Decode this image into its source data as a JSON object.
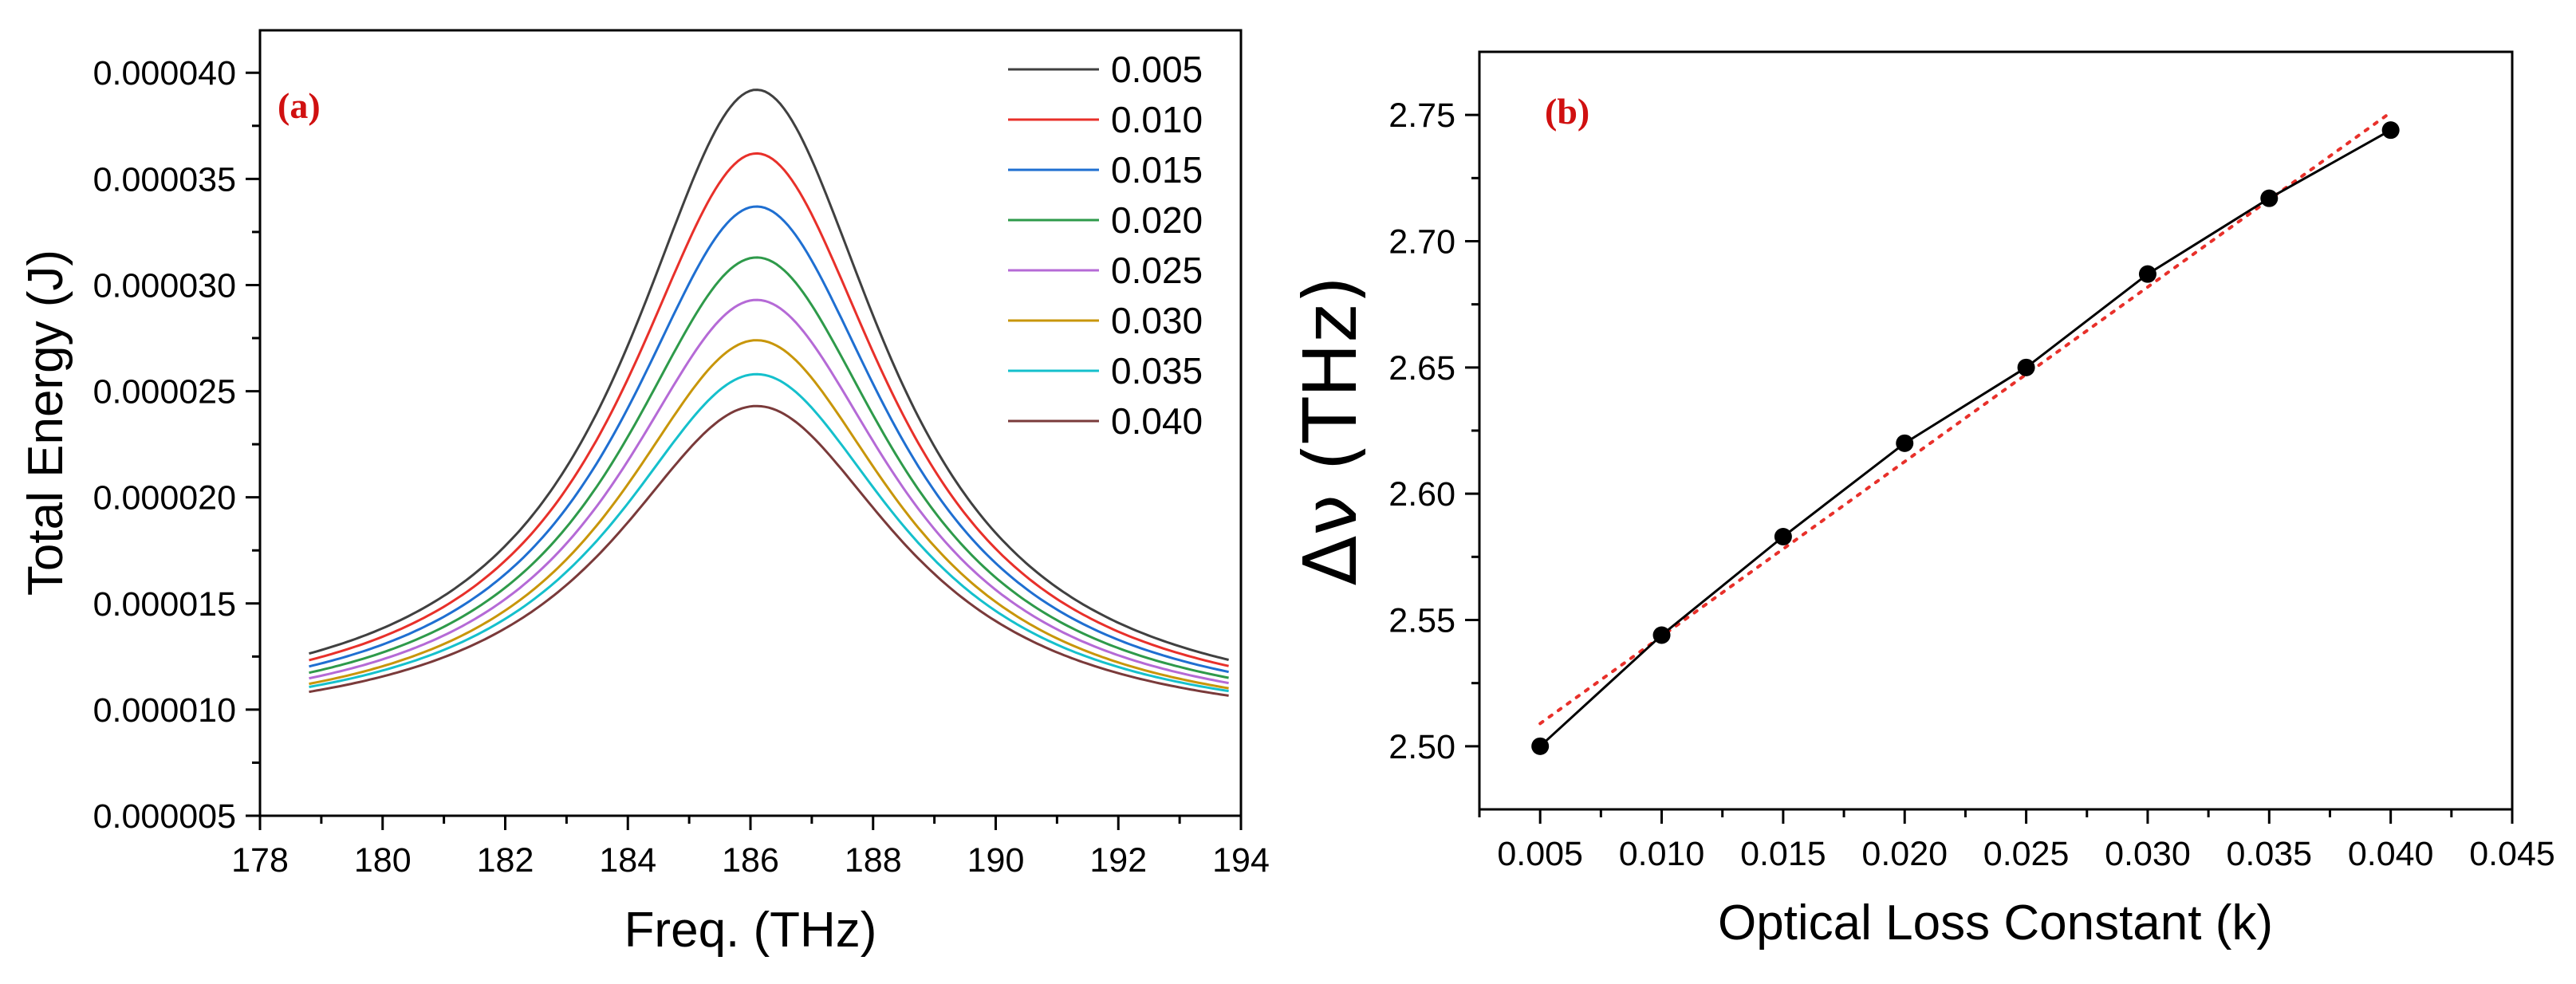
{
  "chart_data": [
    {
      "type": "line",
      "panel_label": "(a)",
      "xlabel": "Freq. (THz)",
      "ylabel": "Total Energy (J)",
      "xlim": [
        178,
        194
      ],
      "ylim": [
        5e-06,
        4.2e-05
      ],
      "x_ticks": [
        "178",
        "180",
        "182",
        "184",
        "186",
        "188",
        "190",
        "192",
        "194"
      ],
      "y_ticks": [
        "0.000005",
        "0.000010",
        "0.000015",
        "0.000020",
        "0.000025",
        "0.000030",
        "0.000035",
        "0.000040"
      ],
      "legend": "top-right",
      "center_freq": 186.1,
      "x_range": [
        178.8,
        193.8
      ],
      "series": [
        {
          "name": "0.005",
          "color": "#404040",
          "peak": 3.92e-05,
          "baseline": 9.4e-06,
          "width": 2.55
        },
        {
          "name": "0.010",
          "color": "#e8302a",
          "peak": 3.62e-05,
          "baseline": 9.3e-06,
          "width": 2.6
        },
        {
          "name": "0.015",
          "color": "#1f6fd1",
          "peak": 3.37e-05,
          "baseline": 9.2e-06,
          "width": 2.64
        },
        {
          "name": "0.020",
          "color": "#2e9a4a",
          "peak": 3.13e-05,
          "baseline": 9.1e-06,
          "width": 2.68
        },
        {
          "name": "0.025",
          "color": "#b56ad6",
          "peak": 2.93e-05,
          "baseline": 9e-06,
          "width": 2.72
        },
        {
          "name": "0.030",
          "color": "#c8960a",
          "peak": 2.74e-05,
          "baseline": 8.9e-06,
          "width": 2.76
        },
        {
          "name": "0.035",
          "color": "#15c0cc",
          "peak": 2.58e-05,
          "baseline": 8.9e-06,
          "width": 2.8
        },
        {
          "name": "0.040",
          "color": "#7a3a3a",
          "peak": 2.43e-05,
          "baseline": 8.8e-06,
          "width": 2.84
        }
      ]
    },
    {
      "type": "scatter",
      "panel_label": "(b)",
      "xlabel": "Optical Loss Constant (k)",
      "ylabel": "Δν (THz)",
      "xlim": [
        0.0025,
        0.045
      ],
      "ylim": [
        2.475,
        2.775
      ],
      "x_ticks": [
        "0.005",
        "0.010",
        "0.015",
        "0.020",
        "0.025",
        "0.030",
        "0.035",
        "0.040",
        "0.045"
      ],
      "y_ticks": [
        "2.50",
        "2.55",
        "2.60",
        "2.65",
        "2.70",
        "2.75"
      ],
      "x": [
        0.005,
        0.01,
        0.015,
        0.02,
        0.025,
        0.03,
        0.035,
        0.04
      ],
      "y": [
        2.5,
        2.544,
        2.583,
        2.62,
        2.65,
        2.687,
        2.717,
        2.744
      ],
      "point_color": "#000000",
      "line_color": "#000000",
      "fit_color": "#e8302a",
      "fit": {
        "x": [
          0.005,
          0.04
        ],
        "y": [
          2.509,
          2.751
        ]
      }
    }
  ]
}
